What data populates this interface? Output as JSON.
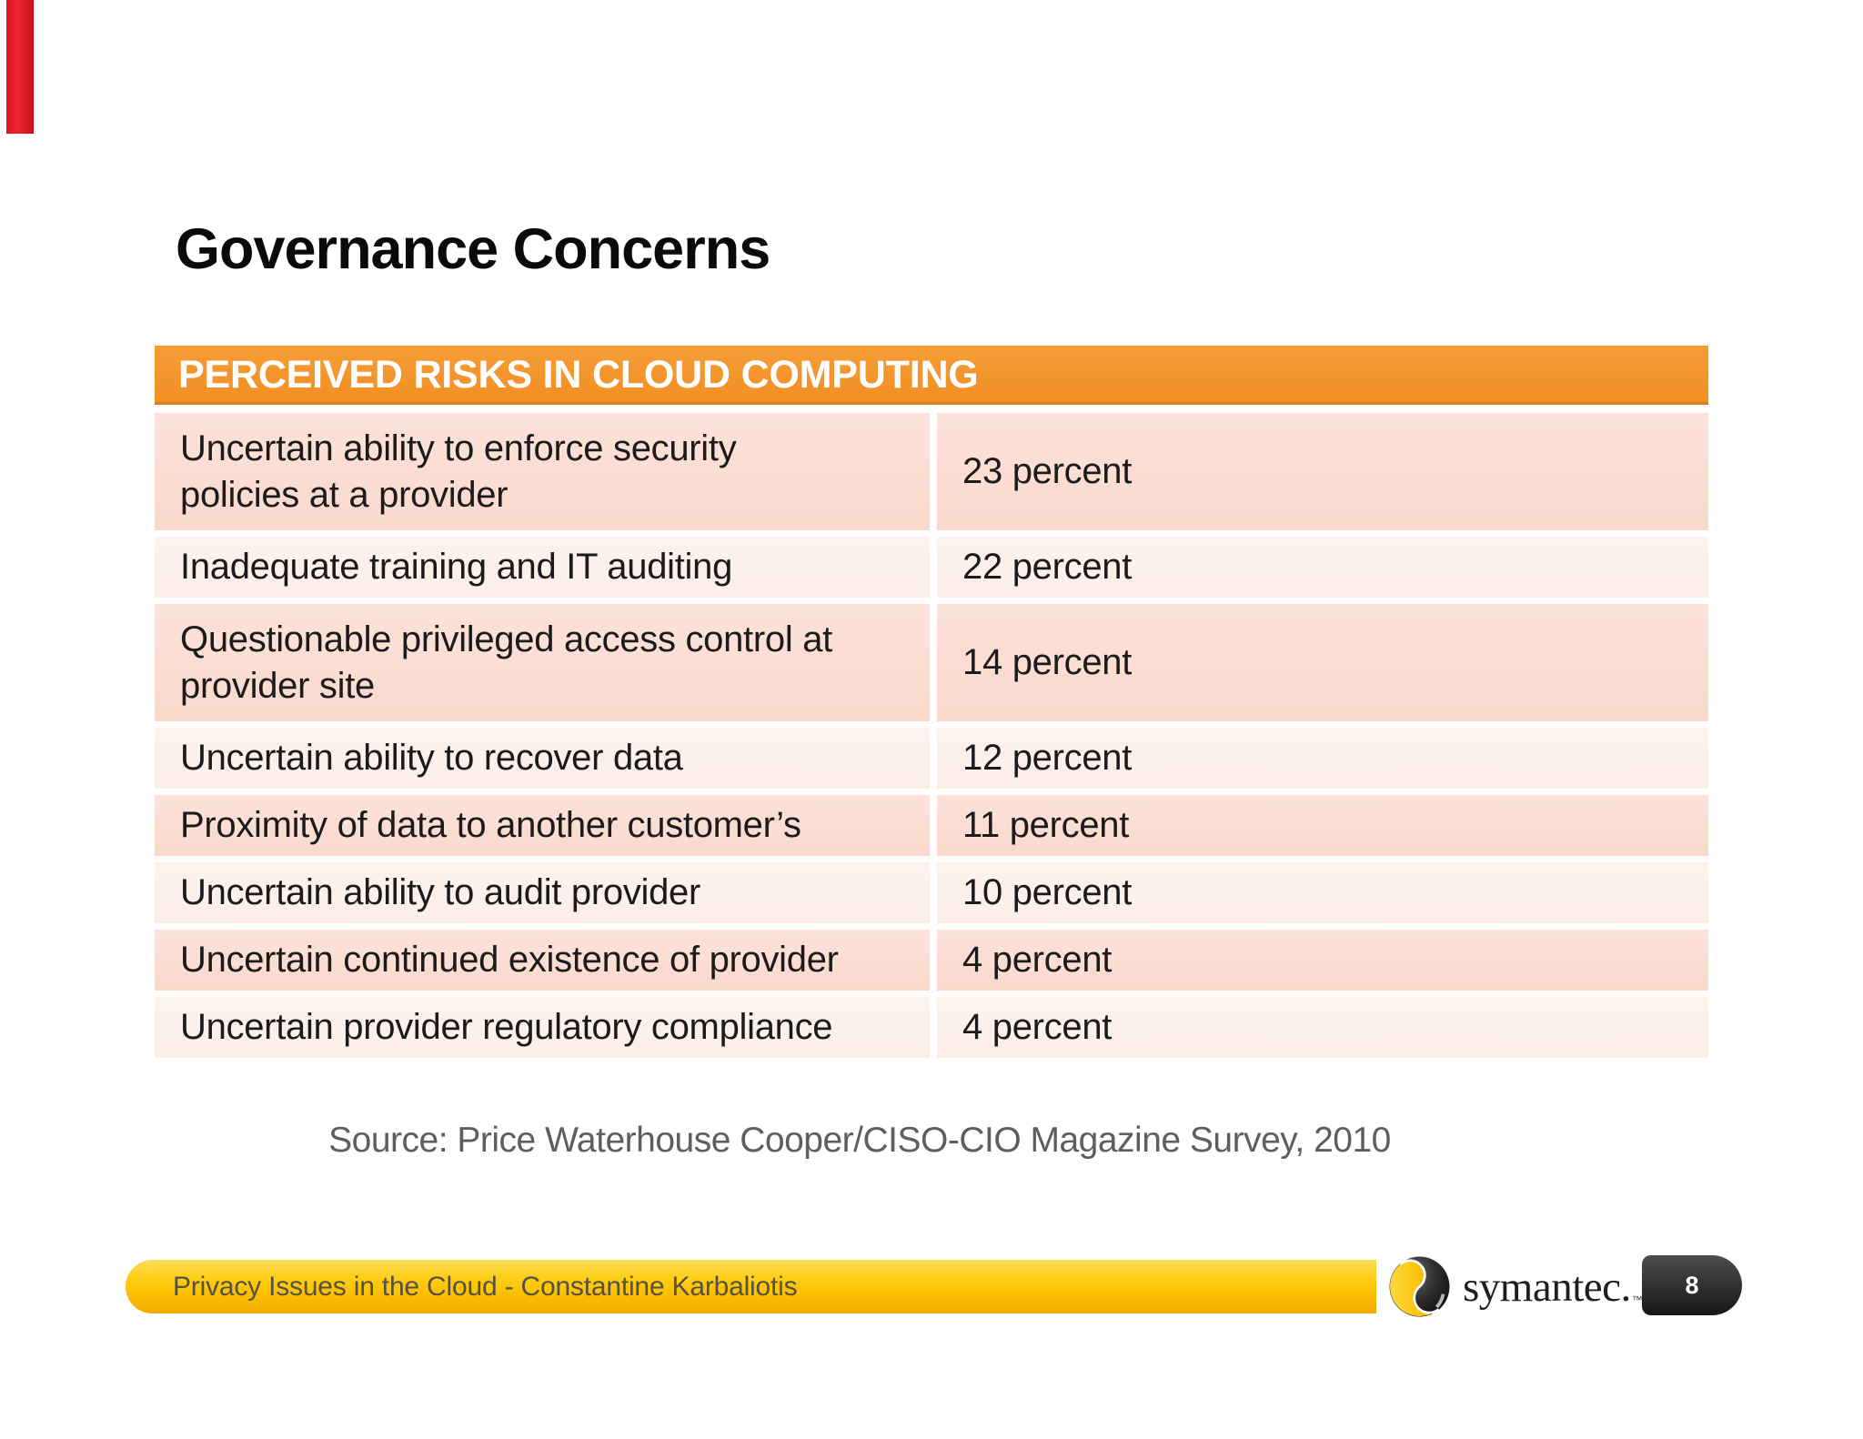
{
  "slide": {
    "title": "Governance Concerns",
    "accent_bar_color": "#e8202c",
    "background_color": "#ffffff"
  },
  "table": {
    "header": "PERCEIVED RISKS IN CLOUD COMPUTING",
    "header_bg_color": "#f3932c",
    "odd_row_color": "#fbdcd2",
    "even_row_color": "#fdf0ea",
    "rows": [
      {
        "risk": "Uncertain ability to enforce security policies at a provider",
        "value": "23 percent"
      },
      {
        "risk": "Inadequate training and IT auditing",
        "value": "22 percent"
      },
      {
        "risk": "Questionable privileged access control at provider site",
        "value": "14 percent"
      },
      {
        "risk": "Uncertain ability to recover data",
        "value": "12 percent"
      },
      {
        "risk": "Proximity of data to another customer’s",
        "value": "11 percent"
      },
      {
        "risk": "Uncertain ability to audit provider",
        "value": "10 percent"
      },
      {
        "risk": "Uncertain continued existence of provider",
        "value": "4 percent"
      },
      {
        "risk": "Uncertain provider regulatory compliance",
        "value": "4 percent"
      }
    ]
  },
  "chart_data": {
    "type": "table",
    "title": "PERCEIVED RISKS IN CLOUD COMPUTING",
    "categories": [
      "Uncertain ability to enforce security policies at a provider",
      "Inadequate training and IT auditing",
      "Questionable privileged access control at provider site",
      "Uncertain ability to recover data",
      "Proximity of data to another customer’s",
      "Uncertain ability to audit provider",
      "Uncertain continued existence of provider",
      "Uncertain provider regulatory compliance"
    ],
    "values": [
      23,
      22,
      14,
      12,
      11,
      10,
      4,
      4
    ],
    "unit": "percent"
  },
  "source": "Source: Price Waterhouse Cooper/CISO-CIO Magazine Survey, 2010",
  "footer": {
    "text": "Privacy Issues in the Cloud - Constantine Karbaliotis",
    "bar_color": "#fec500",
    "brand": "symantec.",
    "trademark": "™",
    "page_number": "8"
  }
}
